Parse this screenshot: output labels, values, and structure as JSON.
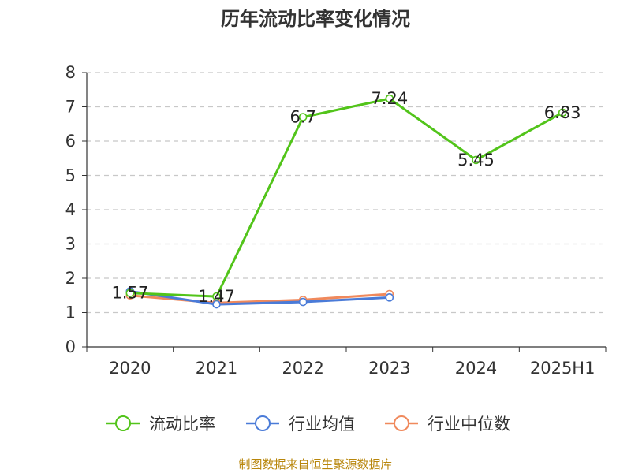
{
  "chart_data": {
    "type": "line",
    "title": "历年流动比率变化情况",
    "categories": [
      "2020",
      "2021",
      "2022",
      "2023",
      "2024",
      "2025H1"
    ],
    "ylim": [
      0,
      8
    ],
    "yticks": [
      "0",
      "1",
      "2",
      "3",
      "4",
      "5",
      "6",
      "7",
      "8"
    ],
    "grid": true,
    "legend_position": "bottom",
    "series": [
      {
        "name": "流动比率",
        "color": "#52c41a",
        "values": [
          1.57,
          1.47,
          6.7,
          7.24,
          5.45,
          6.83
        ],
        "labels": [
          "1.57",
          "1.47",
          "6.7",
          "7.24",
          "5.45",
          "6.83"
        ]
      },
      {
        "name": "行业均值",
        "color": "#4a7bd8",
        "values": [
          1.62,
          1.24,
          1.31,
          1.44,
          null,
          null
        ],
        "labels": []
      },
      {
        "name": "行业中位数",
        "color": "#f0895c",
        "values": [
          1.5,
          1.28,
          1.37,
          1.54,
          null,
          null
        ],
        "labels": []
      }
    ],
    "source": "制图数据来自恒生聚源数据库"
  }
}
